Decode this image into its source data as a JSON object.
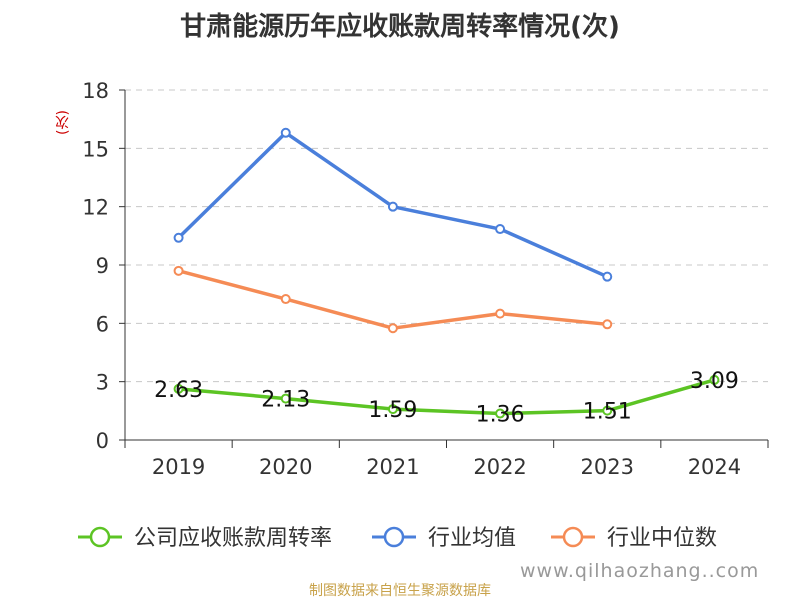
{
  "title": "甘肃能源历年应收账款周转率情况(次)",
  "unit_label": "(次)",
  "source_note": "制图数据来自恒生聚源数据库",
  "watermark": "www.qilhaozhang..com",
  "chart_data": {
    "type": "line",
    "categories": [
      "2019",
      "2020",
      "2021",
      "2022",
      "2023",
      "2024"
    ],
    "ylim": [
      0,
      18
    ],
    "yticks": [
      0,
      3,
      6,
      9,
      12,
      15,
      18
    ],
    "grid": true,
    "legend_position": "bottom",
    "series": [
      {
        "name": "公司应收账款周转率",
        "color": "#5cc424",
        "values": [
          2.63,
          2.13,
          1.59,
          1.36,
          1.51,
          3.09
        ],
        "data_labels": [
          "2.63",
          "2.13",
          "1.59",
          "1.36",
          "1.51",
          "3.09"
        ]
      },
      {
        "name": "行业均值",
        "color": "#4a7fdb",
        "values": [
          10.4,
          15.8,
          12.0,
          10.85,
          8.4,
          null
        ]
      },
      {
        "name": "行业中位数",
        "color": "#f58b55",
        "values": [
          8.7,
          7.25,
          5.75,
          6.5,
          5.95,
          null
        ]
      }
    ]
  }
}
